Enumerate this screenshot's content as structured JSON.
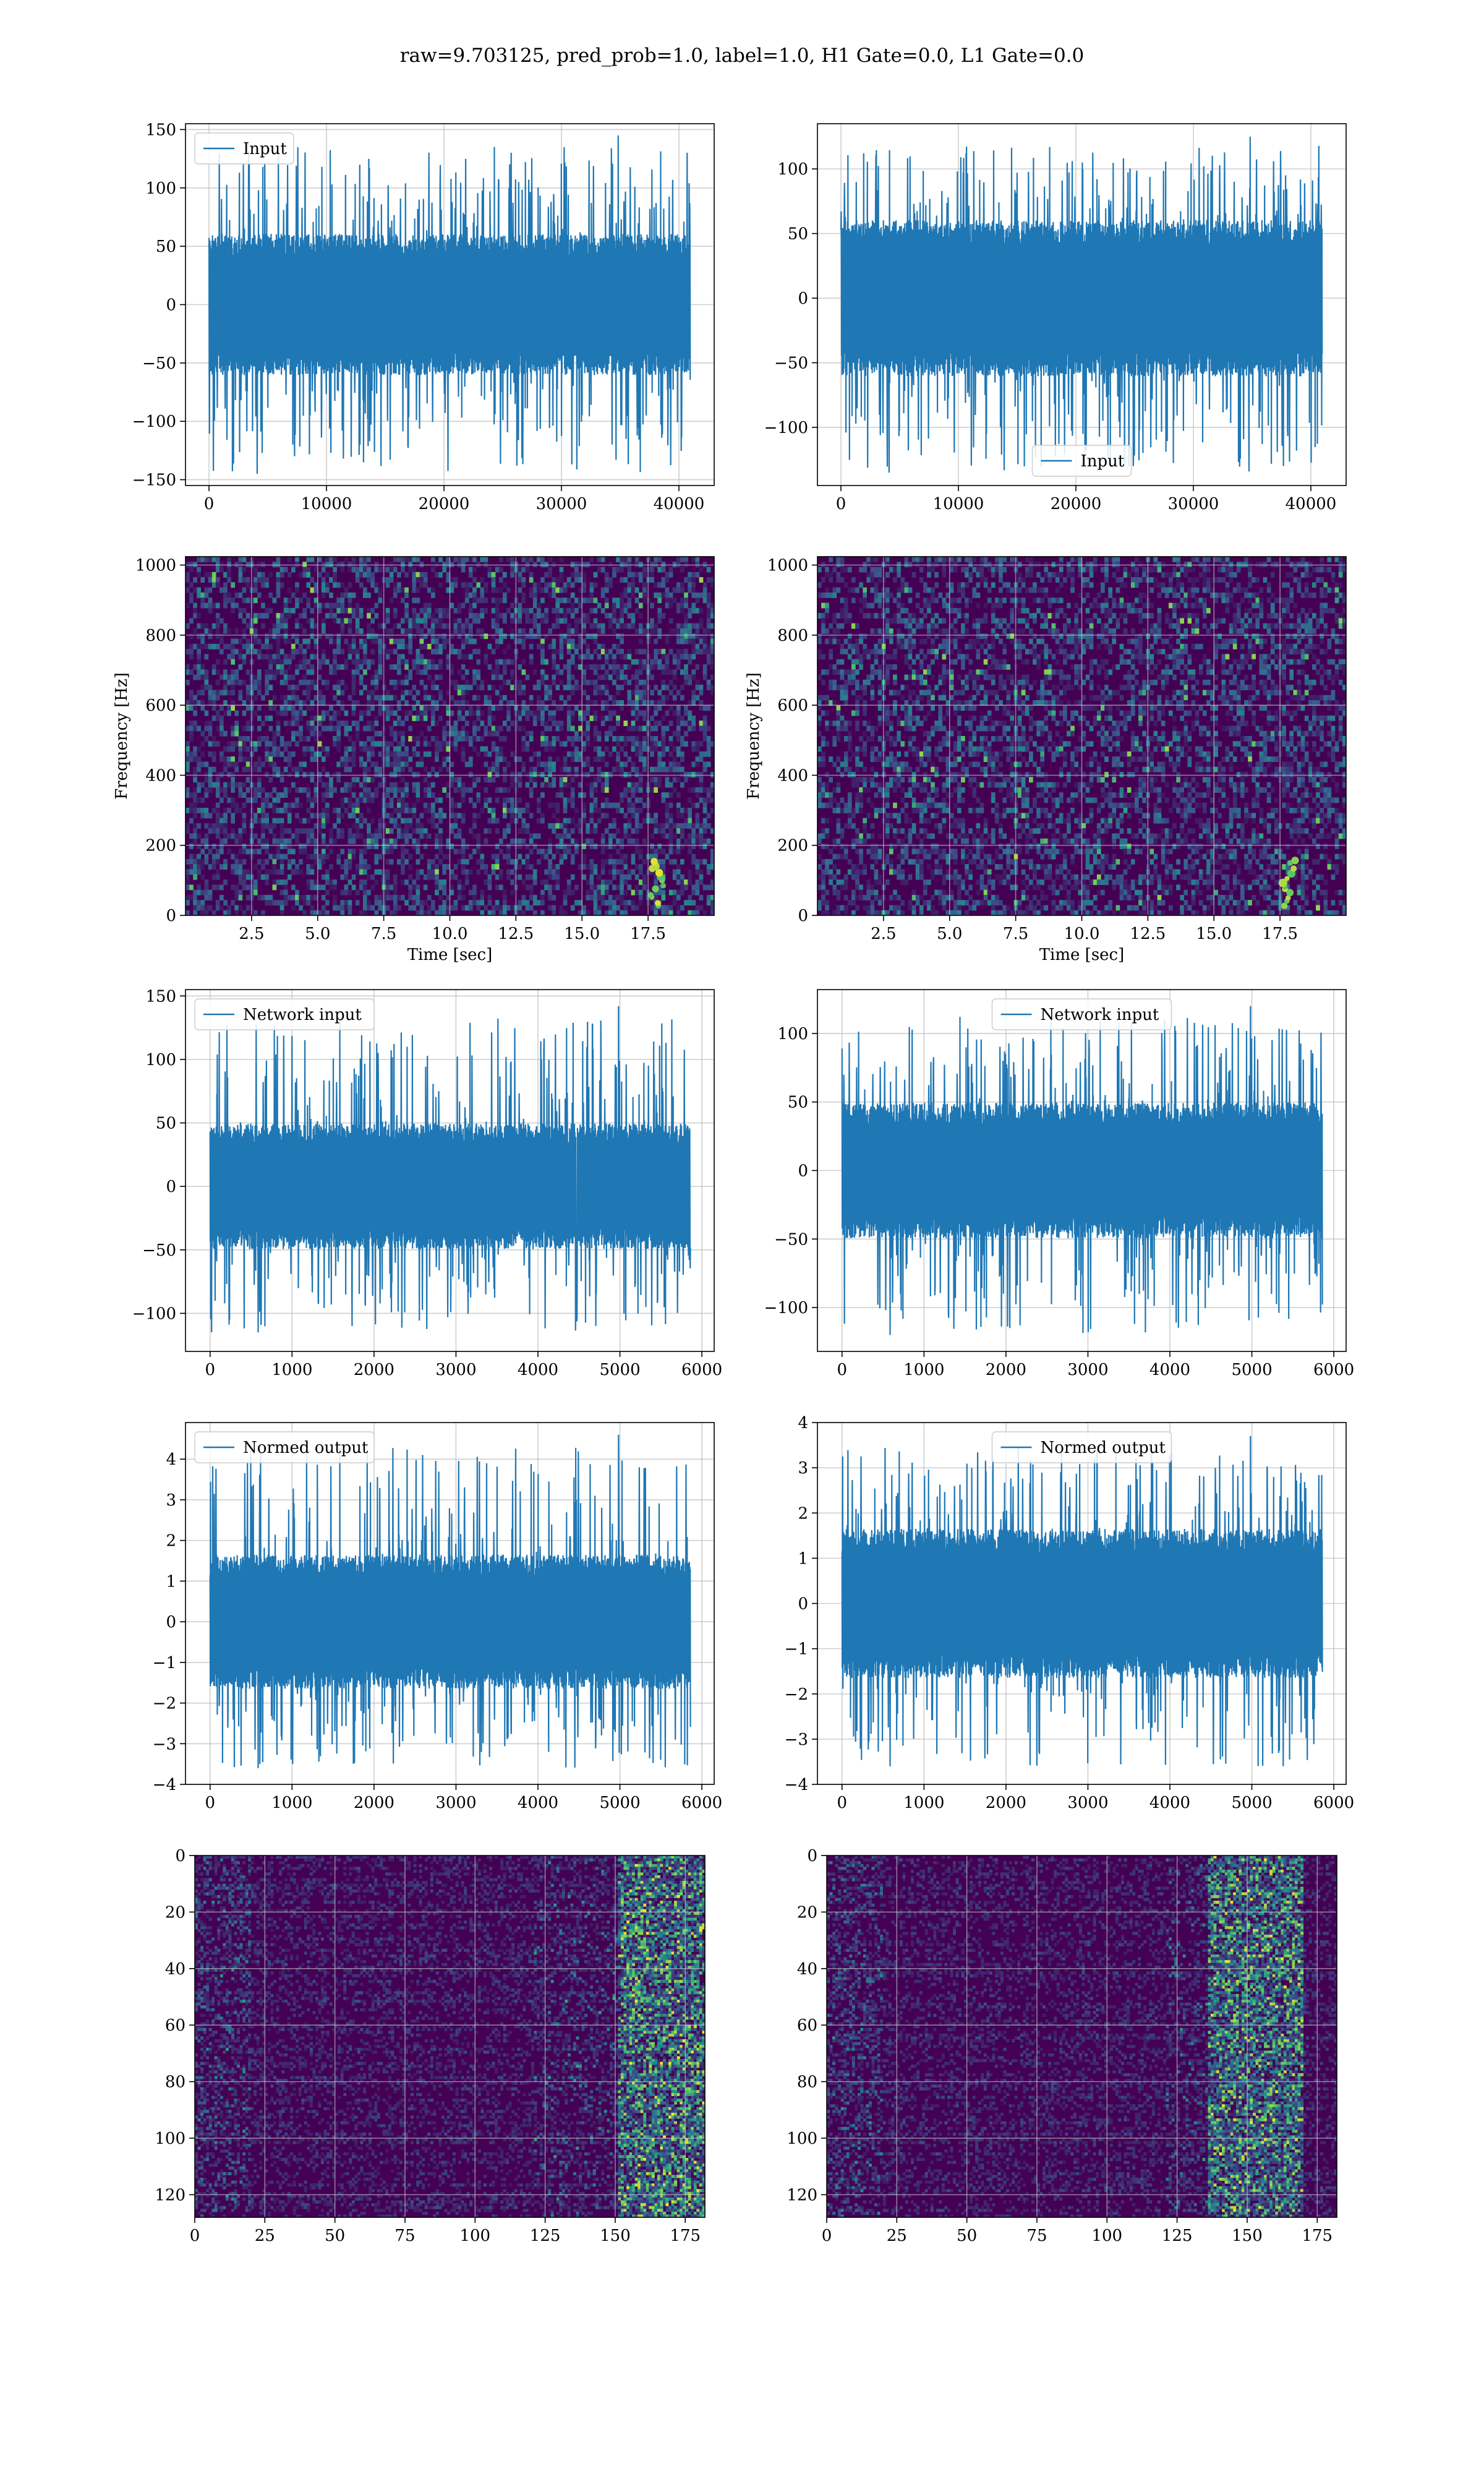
{
  "figure": {
    "title": "raw=9.703125, pred_prob=1.0, label=1.0, H1 Gate=0.0, L1 Gate=0.0"
  },
  "colors": {
    "line": "#1f77b4",
    "grid": "#b0b0b0",
    "viridis_low": "#440154",
    "viridis_mid": "#21918c",
    "viridis_high": "#fde725"
  },
  "chart_data": [
    {
      "id": "input-left",
      "type": "line",
      "legend": "Input",
      "legend_loc": "upper left",
      "xlim": [
        -2000,
        43000
      ],
      "ylim": [
        -155,
        155
      ],
      "xticks": [
        0,
        10000,
        20000,
        30000,
        40000
      ],
      "yticks": [
        -150,
        -100,
        -50,
        0,
        50,
        100,
        150
      ],
      "series": [
        {
          "name": "Input",
          "x_range": [
            0,
            40960
          ],
          "band": [
            -55,
            55
          ],
          "extreme": [
            -145,
            145
          ]
        }
      ],
      "grid": true
    },
    {
      "id": "input-right",
      "type": "line",
      "legend": "Input",
      "legend_loc": "lower center",
      "xlim": [
        -2000,
        43000
      ],
      "ylim": [
        -145,
        135
      ],
      "xticks": [
        0,
        10000,
        20000,
        30000,
        40000
      ],
      "yticks": [
        -100,
        -50,
        0,
        50,
        100
      ],
      "series": [
        {
          "name": "Input",
          "x_range": [
            0,
            40960
          ],
          "band": [
            -55,
            55
          ],
          "extreme": [
            -135,
            125
          ]
        }
      ],
      "grid": true
    },
    {
      "id": "spectrogram-left",
      "type": "heatmap",
      "xlabel": "Time [sec]",
      "ylabel": "Frequency [Hz]",
      "xlim": [
        0,
        20
      ],
      "ylim": [
        0,
        1024
      ],
      "xticks": [
        2.5,
        5.0,
        7.5,
        10.0,
        12.5,
        15.0,
        17.5
      ],
      "yticks": [
        0,
        200,
        400,
        600,
        800,
        1000
      ],
      "colormap": "viridis",
      "grid": true
    },
    {
      "id": "spectrogram-right",
      "type": "heatmap",
      "xlabel": "Time [sec]",
      "ylabel": "Frequency [Hz]",
      "xlim": [
        0,
        20
      ],
      "ylim": [
        0,
        1024
      ],
      "xticks": [
        2.5,
        5.0,
        7.5,
        10.0,
        12.5,
        15.0,
        17.5
      ],
      "yticks": [
        0,
        200,
        400,
        600,
        800,
        1000
      ],
      "colormap": "viridis",
      "grid": true
    },
    {
      "id": "network-input-left",
      "type": "line",
      "legend": "Network input",
      "legend_loc": "upper left",
      "xlim": [
        -300,
        6150
      ],
      "ylim": [
        -130,
        155
      ],
      "xticks": [
        0,
        1000,
        2000,
        3000,
        4000,
        5000,
        6000
      ],
      "yticks": [
        -100,
        -50,
        0,
        50,
        100,
        150
      ],
      "series": [
        {
          "name": "Network input",
          "x_range": [
            0,
            5860
          ],
          "band": [
            -45,
            45
          ],
          "extreme": [
            -115,
            142
          ]
        }
      ],
      "grid": true
    },
    {
      "id": "network-input-right",
      "type": "line",
      "legend": "Network input",
      "legend_loc": "upper center",
      "xlim": [
        -300,
        6150
      ],
      "ylim": [
        -132,
        132
      ],
      "xticks": [
        0,
        1000,
        2000,
        3000,
        4000,
        5000,
        6000
      ],
      "yticks": [
        -100,
        -50,
        0,
        50,
        100
      ],
      "series": [
        {
          "name": "Network input",
          "x_range": [
            0,
            5860
          ],
          "band": [
            -45,
            45
          ],
          "extreme": [
            -120,
            120
          ]
        }
      ],
      "grid": true
    },
    {
      "id": "normed-output-left",
      "type": "line",
      "legend": "Normed output",
      "legend_loc": "upper left",
      "xlim": [
        -300,
        6150
      ],
      "ylim": [
        -4,
        4.9
      ],
      "xticks": [
        0,
        1000,
        2000,
        3000,
        4000,
        5000,
        6000
      ],
      "yticks": [
        -4,
        -3,
        -2,
        -1,
        0,
        1,
        2,
        3,
        4
      ],
      "series": [
        {
          "name": "Normed output",
          "x_range": [
            0,
            5860
          ],
          "band": [
            -1.5,
            1.5
          ],
          "extreme": [
            -3.6,
            4.6
          ]
        }
      ],
      "grid": true
    },
    {
      "id": "normed-output-right",
      "type": "line",
      "legend": "Normed output",
      "legend_loc": "upper center",
      "xlim": [
        -300,
        6150
      ],
      "ylim": [
        -4,
        4
      ],
      "xticks": [
        0,
        1000,
        2000,
        3000,
        4000,
        5000,
        6000
      ],
      "yticks": [
        -4,
        -3,
        -2,
        -1,
        0,
        1,
        2,
        3,
        4
      ],
      "series": [
        {
          "name": "Normed output",
          "x_range": [
            0,
            5860
          ],
          "band": [
            -1.5,
            1.5
          ],
          "extreme": [
            -3.6,
            3.7
          ]
        }
      ],
      "grid": true
    },
    {
      "id": "feature-map-left",
      "type": "heatmap",
      "xlim": [
        0,
        182
      ],
      "ylim": [
        128,
        0
      ],
      "xticks": [
        0,
        25,
        50,
        75,
        100,
        125,
        150,
        175
      ],
      "yticks": [
        0,
        20,
        40,
        60,
        80,
        100,
        120
      ],
      "colormap": "viridis",
      "grid": true
    },
    {
      "id": "feature-map-right",
      "type": "heatmap",
      "xlim": [
        0,
        182
      ],
      "ylim": [
        128,
        0
      ],
      "xticks": [
        0,
        25,
        50,
        75,
        100,
        125,
        150,
        175
      ],
      "yticks": [
        0,
        20,
        40,
        60,
        80,
        100,
        120
      ],
      "colormap": "viridis",
      "grid": true
    }
  ]
}
